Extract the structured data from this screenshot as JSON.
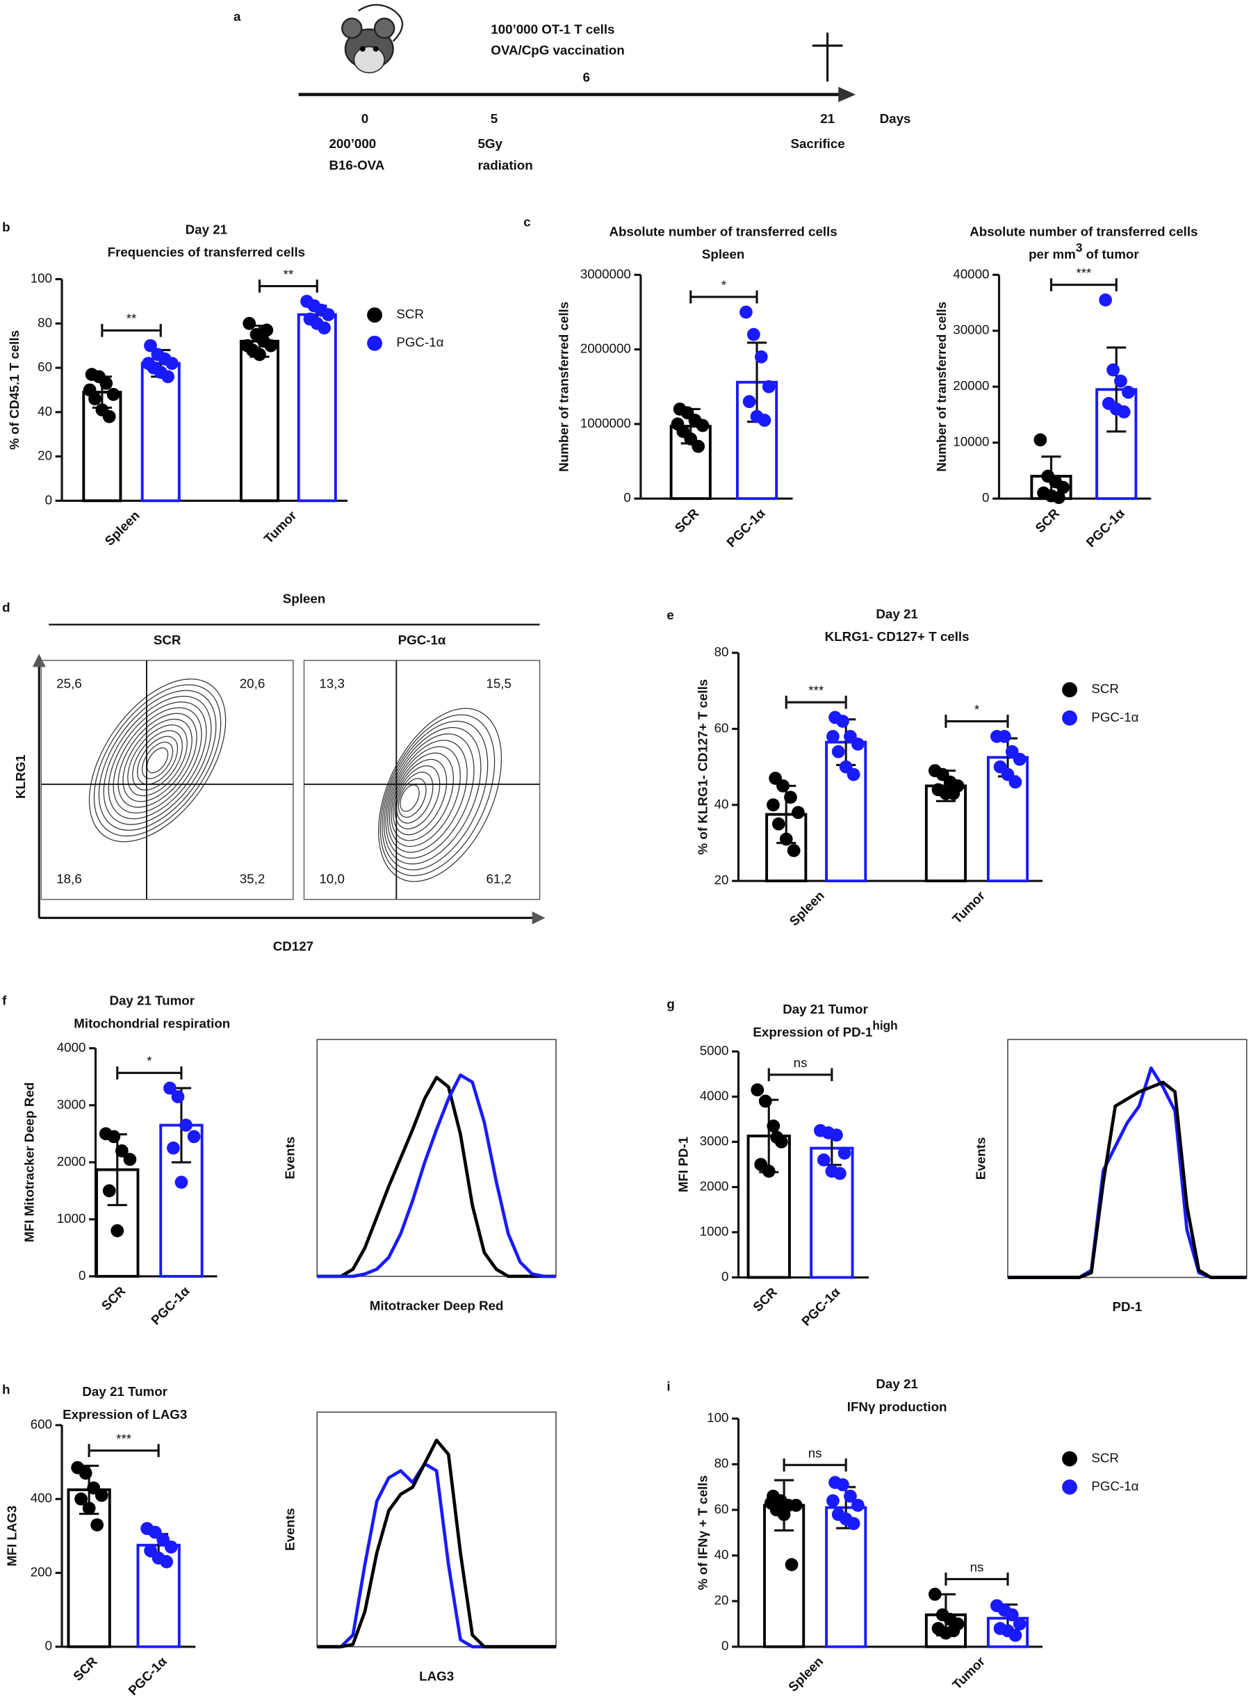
{
  "timeline": {
    "panel": "a",
    "events_top": [
      "100’000 OT-1 T cells",
      "OVA/CpG vaccination"
    ],
    "top_day": 6,
    "days": [
      0,
      5,
      21
    ],
    "axis_label": "Days",
    "below": [
      [
        "200’000",
        "B16-OVA"
      ],
      [
        "5Gy",
        "radiation"
      ],
      [
        "Sacrifice"
      ]
    ]
  },
  "flow": {
    "panel": "d",
    "title": "Spleen",
    "y_label": "KLRG1",
    "x_label": "CD127",
    "plots": [
      {
        "name": "SCR",
        "quadrants": [
          "25,6",
          "20,6",
          "18,6",
          "35,2"
        ]
      },
      {
        "name": "PGC-1α",
        "quadrants": [
          "13,3",
          "15,5",
          "10,0",
          "61,2"
        ]
      }
    ]
  },
  "chart_data": [
    {
      "type": "bar",
      "panel": "b",
      "title": [
        "Day 21",
        "Frequencies of transferred cells"
      ],
      "y_label": "% of CD45.1 T cells",
      "categories": [
        "Spleen",
        "Tumor"
      ],
      "ylim": [
        0,
        100
      ],
      "yticks": [
        0,
        20,
        40,
        60,
        80,
        100
      ],
      "significance": [
        "**",
        "**"
      ],
      "series": [
        {
          "name": "SCR",
          "color": "#000000",
          "values": [
            49,
            72
          ],
          "errors": [
            7,
            7
          ],
          "points": [
            [
              57,
              56,
              53,
              48,
              46,
              41,
              38,
              50
            ],
            [
              80,
              75,
              72,
              70,
              68,
              66,
              77,
              70
            ]
          ]
        },
        {
          "name": "PGC-1α",
          "color": "#1a1aff",
          "values": [
            62,
            84
          ],
          "errors": [
            6,
            4
          ],
          "points": [
            [
              70,
              66,
              64,
              62,
              60,
              58,
              56,
              62
            ],
            [
              90,
              88,
              86,
              84,
              82,
              80,
              78
            ]
          ]
        }
      ]
    },
    {
      "type": "bar",
      "panel": "c",
      "title": [
        "Absolute number of transferred cells",
        "Spleen"
      ],
      "y_label": "Number of transferred cells",
      "categories": [
        "SCR",
        "PGC-1α"
      ],
      "colors": [
        "#000000",
        "#1a1aff"
      ],
      "ylim": [
        0,
        3000000
      ],
      "yticks": [
        0,
        1000000,
        2000000,
        3000000
      ],
      "significance": [
        "*"
      ],
      "values": [
        970000,
        1560000
      ],
      "errors": [
        230000,
        530000
      ],
      "points": [
        [
          1200000,
          1150000,
          1050000,
          980000,
          900000,
          800000,
          700000,
          1000000
        ],
        [
          2500000,
          2200000,
          1900000,
          1500000,
          1300000,
          1100000,
          1050000
        ]
      ]
    },
    {
      "type": "bar",
      "title": [
        "Absolute number of transferred cells",
        "per mm"
      ],
      "title_sup": "3",
      "title_after": " of tumor",
      "y_label": "Number of transferred cells",
      "categories": [
        "SCR",
        "PGC-1α"
      ],
      "colors": [
        "#000000",
        "#1a1aff"
      ],
      "ylim": [
        0,
        40000
      ],
      "yticks": [
        0,
        10000,
        20000,
        30000,
        40000
      ],
      "significance": [
        "***"
      ],
      "values": [
        4000,
        19500
      ],
      "errors": [
        3500,
        7500
      ],
      "points": [
        [
          10500,
          4000,
          3000,
          2000,
          1000,
          500,
          200
        ],
        [
          35500,
          23000,
          21000,
          19000,
          17000,
          16000,
          15500
        ]
      ]
    },
    {
      "type": "bar",
      "panel": "e",
      "title": [
        "Day 21",
        "KLRG1- CD127+ T cells"
      ],
      "y_label": "% of KLRG1- CD127+ T cells",
      "categories": [
        "Spleen",
        "Tumor"
      ],
      "ylim": [
        20,
        80
      ],
      "yticks": [
        20,
        40,
        60,
        80
      ],
      "significance": [
        "***",
        "*"
      ],
      "series": [
        {
          "name": "SCR",
          "color": "#000000",
          "values": [
            37.5,
            45
          ],
          "errors": [
            7.5,
            4
          ],
          "points": [
            [
              47,
              45,
              42,
              38,
              35,
              31,
              28,
              40
            ],
            [
              49,
              48,
              46,
              45,
              44,
              43,
              43
            ]
          ]
        },
        {
          "name": "PGC-1α",
          "color": "#1a1aff",
          "values": [
            56.5,
            52.5
          ],
          "errors": [
            6,
            5
          ],
          "points": [
            [
              63,
              62,
              58,
              56,
              54,
              50,
              48,
              58
            ],
            [
              58,
              58,
              54,
              52,
              50,
              48,
              46
            ]
          ]
        }
      ]
    },
    {
      "type": "bar",
      "panel": "f",
      "title": [
        "Day 21 Tumor",
        "Mitochondrial respiration"
      ],
      "y_label": "MFI Mitotracker Deep Red",
      "categories": [
        "SCR",
        "PGC-1α"
      ],
      "colors": [
        "#000000",
        "#1a1aff"
      ],
      "ylim": [
        0,
        4000
      ],
      "yticks": [
        0,
        1000,
        2000,
        3000,
        4000
      ],
      "significance": [
        "*"
      ],
      "values": [
        1870,
        2650
      ],
      "errors": [
        620,
        650
      ],
      "points": [
        [
          2500,
          2450,
          2200,
          2050,
          1500,
          800
        ],
        [
          3300,
          3150,
          2650,
          2450,
          2250,
          1650
        ]
      ]
    },
    {
      "type": "line",
      "y_label": "Events",
      "x_label": "Mitotracker Deep Red",
      "xlim": [
        0,
        100
      ],
      "ylim": [
        0,
        100
      ],
      "x": [
        0,
        5,
        10,
        15,
        20,
        25,
        30,
        35,
        40,
        45,
        50,
        55,
        60,
        65,
        70,
        75,
        80,
        85,
        90,
        95,
        100
      ],
      "series": [
        {
          "color": "#000000",
          "values": [
            0,
            0,
            0,
            3,
            12,
            25,
            38,
            50,
            62,
            75,
            84,
            80,
            60,
            30,
            10,
            3,
            0,
            0,
            0,
            0,
            0
          ]
        },
        {
          "color": "#1a1aff",
          "values": [
            0,
            0,
            0,
            0,
            1,
            3,
            8,
            18,
            32,
            48,
            62,
            75,
            85,
            82,
            65,
            40,
            18,
            6,
            1,
            0,
            0
          ]
        }
      ]
    },
    {
      "type": "bar",
      "panel": "g",
      "title": [
        "Day 21 Tumor",
        "Expression of PD-1"
      ],
      "title_sup": "high",
      "y_label": "MFI PD-1",
      "categories": [
        "SCR",
        "PGC-1α"
      ],
      "colors": [
        "#000000",
        "#1a1aff"
      ],
      "ylim": [
        0,
        5000
      ],
      "yticks": [
        0,
        1000,
        2000,
        3000,
        4000,
        5000
      ],
      "significance": [
        "ns"
      ],
      "values": [
        3130,
        2860
      ],
      "errors": [
        800,
        370
      ],
      "points": [
        [
          4150,
          3900,
          3350,
          3000,
          2500,
          2350,
          3100
        ],
        [
          3250,
          3200,
          3150,
          2750,
          2600,
          2350,
          2300
        ]
      ]
    },
    {
      "type": "line",
      "y_label": "Events",
      "x_label": "PD-1",
      "xlim": [
        0,
        100
      ],
      "ylim": [
        0,
        100
      ],
      "x": [
        0,
        5,
        10,
        15,
        20,
        25,
        30,
        35,
        40,
        45,
        50,
        55,
        60,
        65,
        70,
        75,
        80,
        85,
        90,
        95,
        100
      ],
      "series": [
        {
          "color": "#1a1aff",
          "values": [
            0,
            0,
            0,
            0,
            0,
            0,
            0,
            3,
            45,
            55,
            65,
            72,
            88,
            80,
            70,
            20,
            2,
            0,
            0,
            0,
            0
          ]
        },
        {
          "color": "#000000",
          "values": [
            0,
            0,
            0,
            0,
            0,
            0,
            0,
            2,
            40,
            72,
            75,
            78,
            80,
            82,
            78,
            30,
            3,
            0,
            0,
            0,
            0
          ]
        }
      ]
    },
    {
      "type": "bar",
      "panel": "h",
      "title": [
        "Day 21 Tumor",
        "Expression of LAG3"
      ],
      "y_label": "MFI LAG3",
      "categories": [
        "SCR",
        "PGC-1α"
      ],
      "colors": [
        "#000000",
        "#1a1aff"
      ],
      "ylim": [
        0,
        600
      ],
      "yticks": [
        0,
        200,
        400,
        600
      ],
      "significance": [
        "***"
      ],
      "values": [
        425,
        275
      ],
      "errors": [
        65,
        30
      ],
      "points": [
        [
          485,
          470,
          430,
          410,
          400,
          375,
          330
        ],
        [
          320,
          310,
          290,
          270,
          260,
          240,
          230
        ]
      ]
    },
    {
      "type": "line",
      "y_label": "Events",
      "x_label": "LAG3",
      "xlim": [
        0,
        100
      ],
      "ylim": [
        0,
        100
      ],
      "x": [
        0,
        5,
        10,
        15,
        20,
        25,
        30,
        35,
        40,
        45,
        50,
        55,
        60,
        65,
        70,
        75,
        80,
        85,
        90,
        95,
        100
      ],
      "series": [
        {
          "color": "#1a1aff",
          "values": [
            0,
            0,
            0,
            5,
            35,
            62,
            72,
            75,
            70,
            78,
            75,
            35,
            3,
            0,
            0,
            0,
            0,
            0,
            0,
            0,
            0
          ]
        },
        {
          "color": "#000000",
          "values": [
            0,
            0,
            0,
            1,
            15,
            40,
            58,
            65,
            68,
            78,
            88,
            82,
            40,
            5,
            0,
            0,
            0,
            0,
            0,
            0,
            0
          ]
        }
      ]
    },
    {
      "type": "bar",
      "panel": "i",
      "title": [
        "Day 21",
        "IFNγ production"
      ],
      "y_label": "% of IFNγ + T cells",
      "categories": [
        "Spleen",
        "Tumor"
      ],
      "ylim": [
        0,
        100
      ],
      "yticks": [
        0,
        20,
        40,
        60,
        80,
        100
      ],
      "significance": [
        "ns",
        "ns"
      ],
      "series": [
        {
          "name": "SCR",
          "color": "#000000",
          "values": [
            62,
            14
          ],
          "errors": [
            11,
            9
          ],
          "points": [
            [
              66,
              64,
              62,
              62,
              60,
              58,
              36,
              63
            ],
            [
              23,
              14,
              12,
              10,
              8,
              6,
              7
            ]
          ]
        },
        {
          "name": "PGC-1α",
          "color": "#1a1aff",
          "values": [
            61,
            12.5
          ],
          "errors": [
            9,
            6
          ],
          "points": [
            [
              72,
              71,
              66,
              62,
              58,
              56,
              54,
              64
            ],
            [
              18,
              16,
              14,
              10,
              8,
              7,
              5
            ]
          ]
        }
      ]
    }
  ]
}
